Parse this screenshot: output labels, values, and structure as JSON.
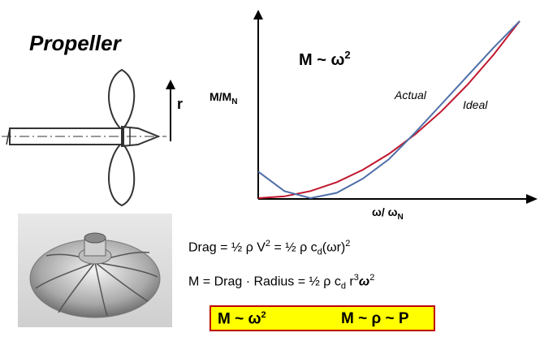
{
  "title": "Propeller",
  "r_label": "r",
  "chart": {
    "formula_main": "M ~ ω",
    "formula_exp": "2",
    "ylabel_main": "M/M",
    "ylabel_sub": "N",
    "xlabel_main": "ω/ ω",
    "xlabel_sub": "N",
    "curve_actual": "Actual",
    "curve_ideal": "Ideal",
    "color_actual": "#4f6fa8",
    "color_ideal": "#c0172e"
  },
  "chart_data": {
    "type": "line",
    "xlabel": "ω/ ωN",
    "ylabel": "M/MN",
    "xlim": [
      0,
      1
    ],
    "ylim": [
      0,
      1
    ],
    "series": [
      {
        "name": "Actual",
        "x": [
          0,
          0.1,
          0.2,
          0.3,
          0.4,
          0.5,
          0.6,
          0.7,
          0.8,
          0.9,
          1.0
        ],
        "y": [
          0.15,
          0.04,
          0.0,
          0.03,
          0.11,
          0.22,
          0.37,
          0.53,
          0.69,
          0.85,
          1.0
        ]
      },
      {
        "name": "Ideal",
        "x": [
          0,
          0.1,
          0.2,
          0.3,
          0.4,
          0.5,
          0.6,
          0.7,
          0.8,
          0.9,
          1.0
        ],
        "y": [
          0.0,
          0.01,
          0.04,
          0.09,
          0.16,
          0.25,
          0.36,
          0.49,
          0.64,
          0.81,
          1.0
        ]
      }
    ]
  },
  "equations": {
    "drag_a": "Drag = ½ ρ V",
    "drag_sup": "2",
    "drag_b": " = ½ ρ c",
    "drag_sub": "d",
    "drag_c": "(ωr)",
    "drag_sup2": "2",
    "moment_a": "M = Drag · Radius = ½ ρ c",
    "moment_sub": "d",
    "moment_b": " r",
    "moment_sup": "3",
    "moment_c": "ω",
    "moment_sup2": "2"
  },
  "box": {
    "left_main": "M ~ ω",
    "left_sup": "2",
    "right": "M ~ ρ ~ P",
    "fill": "#ffff00",
    "border": "#c00000"
  }
}
